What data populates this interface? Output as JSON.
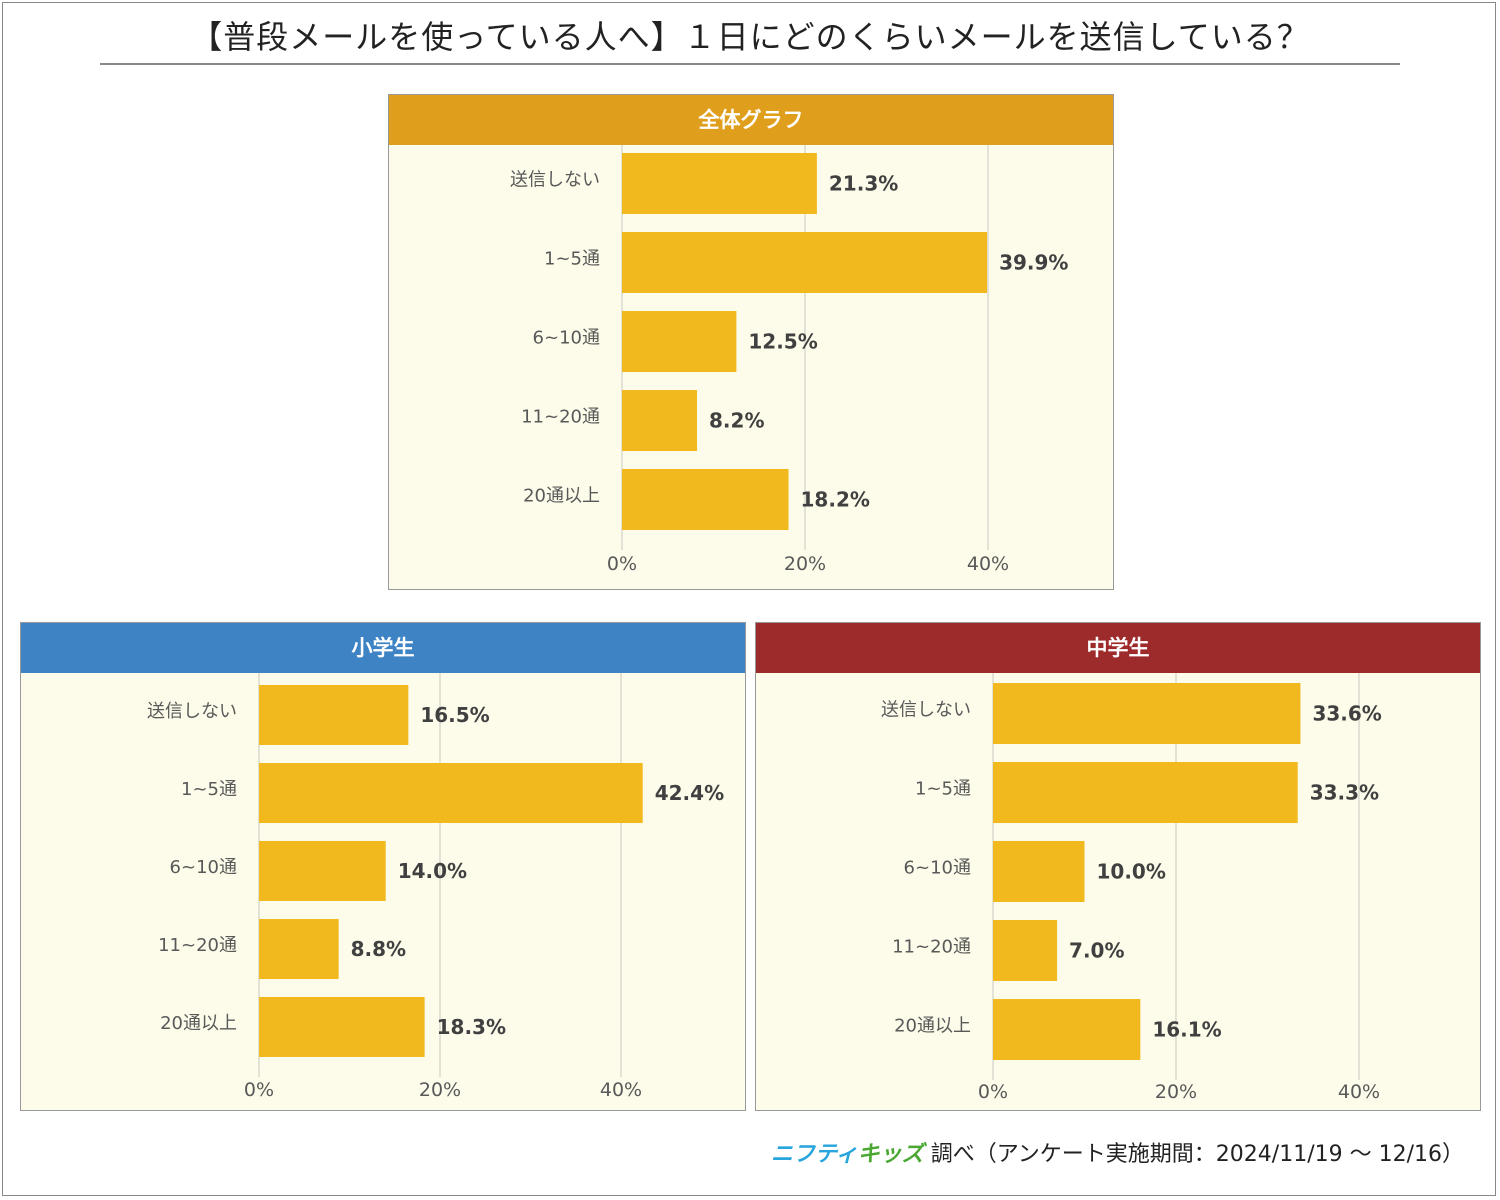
{
  "title": "【普段メールを使っている人へ】１日にどのくらいメールを送信している？",
  "colors": {
    "bar": "#f2b91e",
    "overall_header": "#e09e1d",
    "elementary_header": "#3e84c5",
    "junior_header": "#9e2b2b",
    "plot_bg": "#fdfbe9",
    "grid": "#d9d9d0"
  },
  "footer": {
    "logo_part1": "ニフティ",
    "logo_part2": "キッズ",
    "text": "調べ（アンケート実施期間：2024/11/19 ～ 12/16）"
  },
  "chart_data": [
    {
      "id": "overall",
      "type": "bar",
      "orientation": "horizontal",
      "title": "全体グラフ",
      "categories": [
        "送信しない",
        "1~5通",
        "6~10通",
        "11~20通",
        "20通以上"
      ],
      "values": [
        21.3,
        39.9,
        12.5,
        8.2,
        18.2
      ],
      "value_labels": [
        "21.3%",
        "39.9%",
        "12.5%",
        "8.2%",
        "18.2%"
      ],
      "xlim": [
        0,
        50
      ],
      "ticks": [
        0,
        20,
        40
      ],
      "tick_labels": [
        "0%",
        "20%",
        "40%"
      ],
      "grid": true
    },
    {
      "id": "elementary",
      "type": "bar",
      "orientation": "horizontal",
      "title": "小学生",
      "categories": [
        "送信しない",
        "1~5通",
        "6~10通",
        "11~20通",
        "20通以上"
      ],
      "values": [
        16.5,
        42.4,
        14.0,
        8.8,
        18.3
      ],
      "value_labels": [
        "16.5%",
        "42.4%",
        "14.0%",
        "8.8%",
        "18.3%"
      ],
      "xlim": [
        0,
        50
      ],
      "ticks": [
        0,
        20,
        40
      ],
      "tick_labels": [
        "0%",
        "20%",
        "40%"
      ],
      "grid": true
    },
    {
      "id": "junior",
      "type": "bar",
      "orientation": "horizontal",
      "title": "中学生",
      "categories": [
        "送信しない",
        "1~5通",
        "6~10通",
        "11~20通",
        "20通以上"
      ],
      "values": [
        33.6,
        33.3,
        10.0,
        7.0,
        16.1
      ],
      "value_labels": [
        "33.6%",
        "33.3%",
        "10.0%",
        "7.0%",
        "16.1%"
      ],
      "xlim": [
        0,
        50
      ],
      "ticks": [
        0,
        20,
        40
      ],
      "tick_labels": [
        "0%",
        "20%",
        "40%"
      ],
      "grid": true
    }
  ]
}
